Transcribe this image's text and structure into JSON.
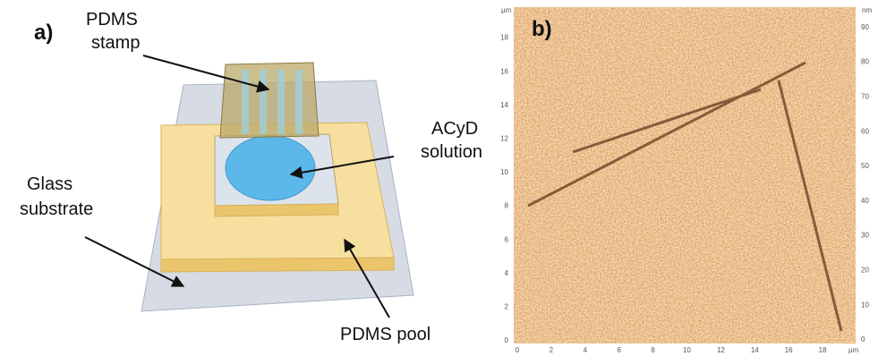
{
  "panel_a": {
    "label": "a)",
    "callouts": [
      {
        "lines": [
          "PDMS",
          "stamp"
        ]
      },
      {
        "lines": [
          "ACyD",
          "solution"
        ]
      },
      {
        "lines": [
          "Glass",
          "substrate"
        ]
      },
      {
        "lines": [
          "PDMS pool"
        ]
      }
    ]
  },
  "panel_b": {
    "label": "b)",
    "y_unit": "µm",
    "y_ticks": [
      "0",
      "2",
      "4",
      "6",
      "8",
      "10",
      "12",
      "14",
      "16",
      "18"
    ],
    "x_ticks": [
      "0",
      "2",
      "4",
      "6",
      "8",
      "10",
      "12",
      "14",
      "16",
      "18"
    ],
    "x_unit": "µm",
    "scale_unit": "nm",
    "scale_ticks": [
      "0",
      "10",
      "20",
      "30",
      "40",
      "50",
      "60",
      "70",
      "80",
      "90"
    ]
  }
}
